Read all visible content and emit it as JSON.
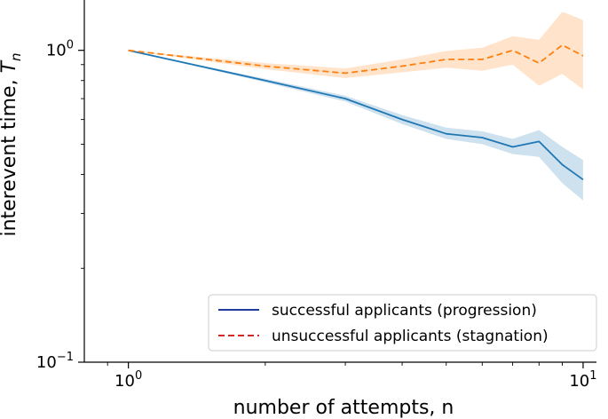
{
  "chart_data": {
    "type": "line",
    "x_scale": "log",
    "y_scale": "log",
    "xlim": [
      0.8,
      10.7
    ],
    "ylim": [
      0.1,
      1.45
    ],
    "xlabel": "number of attempts, n",
    "ylabel_main": "interevent time, ",
    "ylabel_symbol": "T",
    "ylabel_subscript": "n",
    "x_ticks": [
      {
        "value": 1,
        "base": "10",
        "exp": "0"
      },
      {
        "value": 10,
        "base": "10",
        "exp": "1"
      }
    ],
    "y_ticks": [
      {
        "value": 0.1,
        "base": "10",
        "exp": "−1"
      },
      {
        "value": 1,
        "base": "10",
        "exp": "0"
      }
    ],
    "legend_position": "bottom-right",
    "series": [
      {
        "name": "successful applicants (progression)",
        "style": "solid",
        "color": "#1f77b4",
        "legend_color": "#1f3c9c",
        "band_color": "#1f77b4",
        "x": [
          1,
          2,
          3,
          4,
          5,
          6,
          7,
          8,
          9,
          10
        ],
        "y": [
          1.0,
          0.8,
          0.7,
          0.6,
          0.54,
          0.525,
          0.49,
          0.51,
          0.43,
          0.385
        ],
        "y_low": [
          1.0,
          0.79,
          0.685,
          0.58,
          0.52,
          0.5,
          0.465,
          0.455,
          0.375,
          0.33
        ],
        "y_high": [
          1.0,
          0.81,
          0.715,
          0.62,
          0.565,
          0.55,
          0.52,
          0.555,
          0.49,
          0.445
        ]
      },
      {
        "name": "unsuccessful applicants (stagnation)",
        "style": "dashed",
        "color": "#ff7f0e",
        "legend_color": "#d62728",
        "band_color": "#ff7f0e",
        "x": [
          1,
          2,
          3,
          4,
          5,
          6,
          7,
          8,
          9,
          10
        ],
        "y": [
          1.0,
          0.89,
          0.845,
          0.89,
          0.935,
          0.935,
          1.0,
          0.91,
          1.04,
          0.96
        ],
        "y_low": [
          1.0,
          0.87,
          0.815,
          0.85,
          0.88,
          0.86,
          0.9,
          0.77,
          0.84,
          0.75
        ],
        "y_high": [
          1.0,
          0.91,
          0.875,
          0.935,
          0.995,
          1.02,
          1.11,
          1.08,
          1.33,
          1.25
        ]
      }
    ]
  }
}
